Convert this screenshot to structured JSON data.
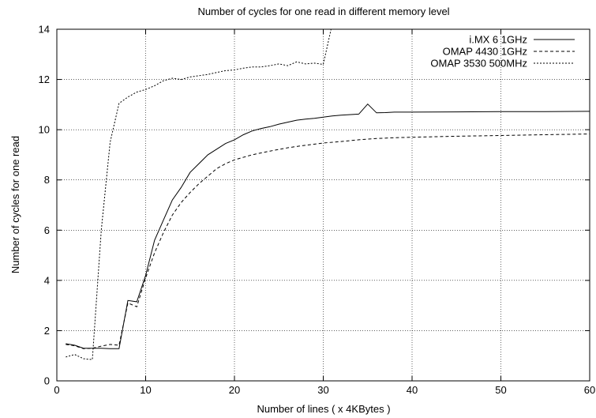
{
  "chart_data": {
    "type": "line",
    "title": "Number of cycles for one read in different memory level",
    "xlabel": "Number of lines ( x 4KBytes )",
    "ylabel": "Number of cycles for one read",
    "xlim": [
      0,
      60
    ],
    "ylim": [
      0,
      14
    ],
    "xticks": [
      "0",
      "10",
      "20",
      "30",
      "40",
      "50",
      "60"
    ],
    "yticks": [
      "0",
      "2",
      "4",
      "6",
      "8",
      "10",
      "12",
      "14"
    ],
    "grid": true,
    "legend_position": "top-right",
    "series": [
      {
        "name": "i.MX 6 1GHz",
        "dash": "solid",
        "color": "#000000",
        "points": [
          [
            1,
            1.48
          ],
          [
            2,
            1.42
          ],
          [
            3,
            1.3
          ],
          [
            4,
            1.3
          ],
          [
            5,
            1.3
          ],
          [
            6,
            1.28
          ],
          [
            7,
            1.28
          ],
          [
            8,
            3.2
          ],
          [
            9,
            3.15
          ],
          [
            10,
            4.2
          ],
          [
            11,
            5.6
          ],
          [
            12,
            6.4
          ],
          [
            13,
            7.2
          ],
          [
            14,
            7.7
          ],
          [
            15,
            8.3
          ],
          [
            17,
            9.0
          ],
          [
            19,
            9.45
          ],
          [
            20,
            9.6
          ],
          [
            21,
            9.8
          ],
          [
            22,
            9.95
          ],
          [
            23,
            10.05
          ],
          [
            24,
            10.12
          ],
          [
            25,
            10.22
          ],
          [
            26,
            10.3
          ],
          [
            27,
            10.38
          ],
          [
            28,
            10.42
          ],
          [
            29,
            10.45
          ],
          [
            30,
            10.5
          ],
          [
            31,
            10.55
          ],
          [
            32,
            10.58
          ],
          [
            34,
            10.62
          ],
          [
            35,
            11.02
          ],
          [
            36,
            10.67
          ],
          [
            37,
            10.68
          ],
          [
            38,
            10.7
          ],
          [
            40,
            10.7
          ],
          [
            45,
            10.71
          ],
          [
            50,
            10.72
          ],
          [
            55,
            10.72
          ],
          [
            60,
            10.73
          ]
        ]
      },
      {
        "name": "OMAP 4430 1GHz",
        "dash": "dashed",
        "color": "#000000",
        "points": [
          [
            1,
            1.45
          ],
          [
            2,
            1.4
          ],
          [
            3,
            1.28
          ],
          [
            4,
            1.3
          ],
          [
            5,
            1.38
          ],
          [
            6,
            1.45
          ],
          [
            7,
            1.42
          ],
          [
            8,
            3.1
          ],
          [
            9,
            2.95
          ],
          [
            10,
            4.1
          ],
          [
            11,
            5.1
          ],
          [
            12,
            5.9
          ],
          [
            13,
            6.6
          ],
          [
            14,
            7.1
          ],
          [
            15,
            7.5
          ],
          [
            16,
            7.85
          ],
          [
            17,
            8.15
          ],
          [
            18,
            8.45
          ],
          [
            19,
            8.65
          ],
          [
            20,
            8.8
          ],
          [
            22,
            9.0
          ],
          [
            24,
            9.15
          ],
          [
            26,
            9.28
          ],
          [
            28,
            9.38
          ],
          [
            30,
            9.47
          ],
          [
            32,
            9.53
          ],
          [
            34,
            9.6
          ],
          [
            36,
            9.65
          ],
          [
            38,
            9.68
          ],
          [
            40,
            9.7
          ],
          [
            45,
            9.74
          ],
          [
            50,
            9.77
          ],
          [
            55,
            9.8
          ],
          [
            60,
            9.83
          ]
        ]
      },
      {
        "name": "OMAP 3530 500MHz",
        "dash": "dotted",
        "color": "#000000",
        "points": [
          [
            1,
            0.95
          ],
          [
            2,
            1.05
          ],
          [
            3,
            0.88
          ],
          [
            4,
            0.85
          ],
          [
            5,
            6.0
          ],
          [
            6,
            9.5
          ],
          [
            7,
            11.05
          ],
          [
            8,
            11.3
          ],
          [
            9,
            11.5
          ],
          [
            10,
            11.6
          ],
          [
            11,
            11.75
          ],
          [
            12,
            11.95
          ],
          [
            13,
            12.05
          ],
          [
            14,
            12.0
          ],
          [
            15,
            12.1
          ],
          [
            16,
            12.15
          ],
          [
            17,
            12.2
          ],
          [
            18,
            12.28
          ],
          [
            19,
            12.35
          ],
          [
            20,
            12.38
          ],
          [
            21,
            12.45
          ],
          [
            22,
            12.5
          ],
          [
            23,
            12.5
          ],
          [
            24,
            12.55
          ],
          [
            25,
            12.62
          ],
          [
            26,
            12.55
          ],
          [
            27,
            12.7
          ],
          [
            28,
            12.62
          ],
          [
            29,
            12.65
          ],
          [
            30,
            12.6
          ],
          [
            31,
            14.2
          ]
        ]
      }
    ]
  }
}
